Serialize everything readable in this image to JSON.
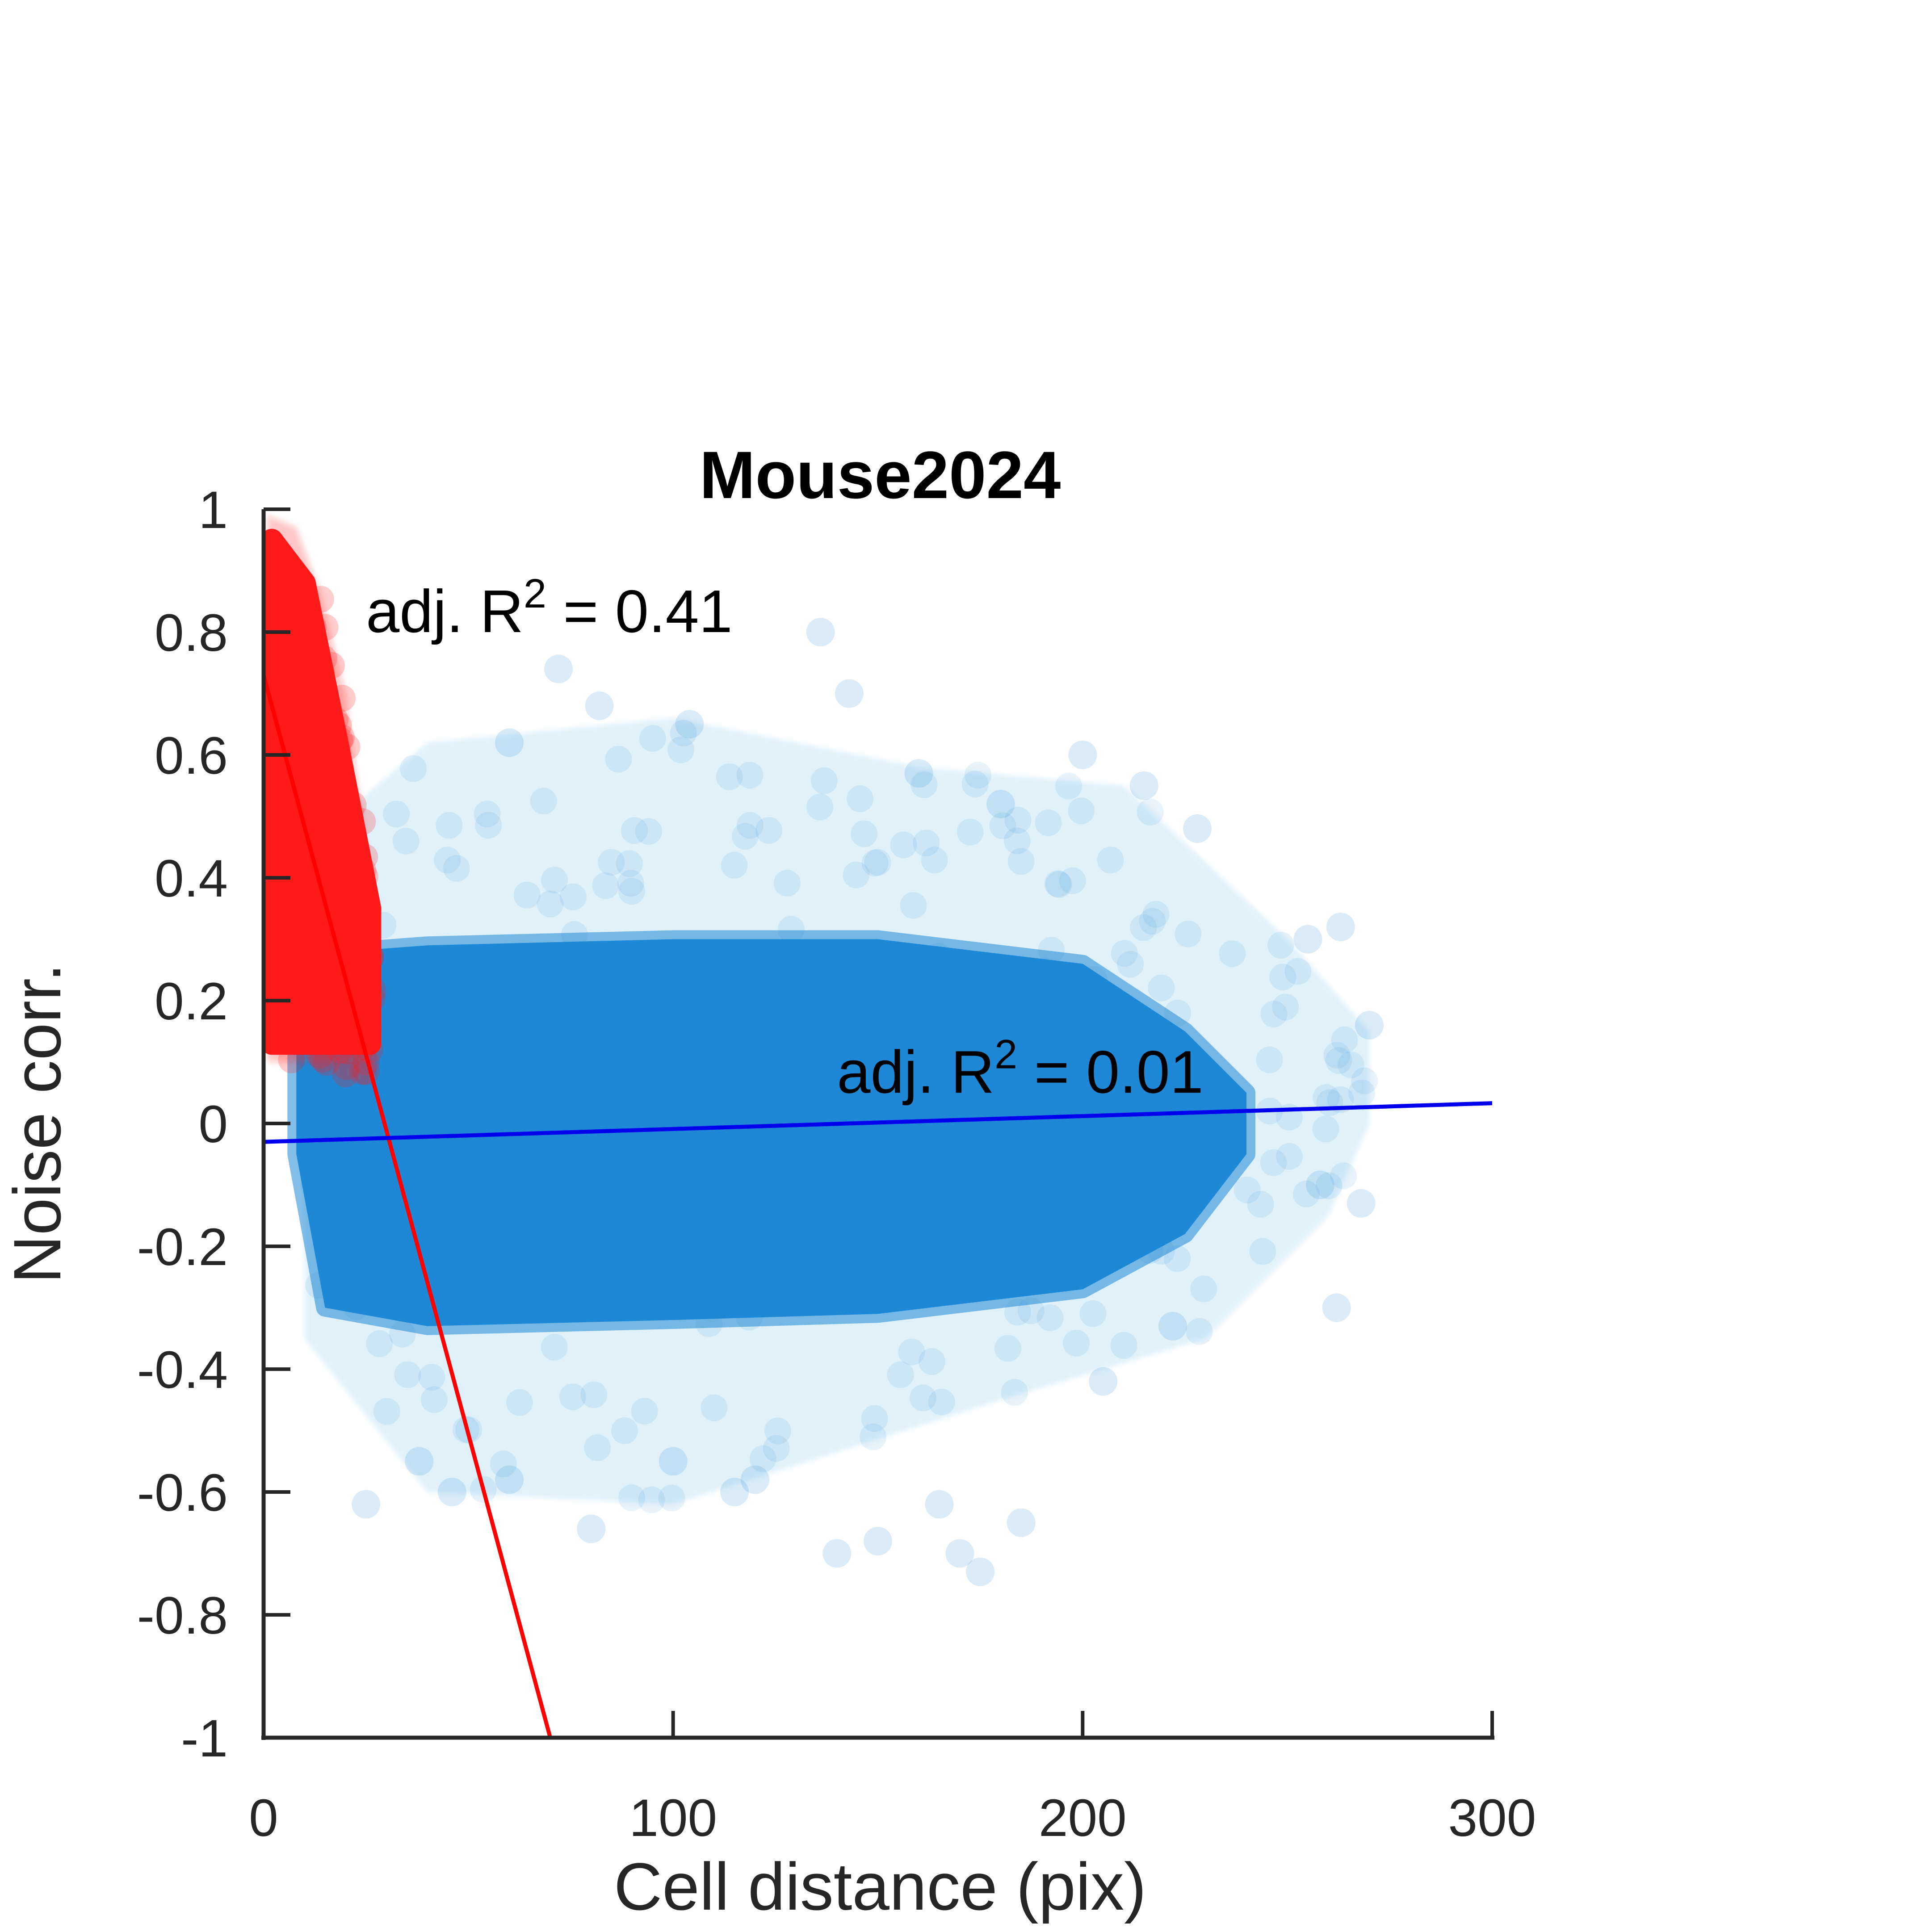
{
  "chart_data": {
    "type": "scatter",
    "title": "Mouse2024",
    "xlabel": "Cell distance (pix)",
    "ylabel": "Noise corr.",
    "xlim": [
      0,
      300
    ],
    "ylim": [
      -1,
      1
    ],
    "xticks": [
      0,
      100,
      200,
      300
    ],
    "xtick_labels": [
      "0",
      "100",
      "200",
      "300"
    ],
    "yticks": [
      1,
      0.8,
      0.6,
      0.4,
      0.2,
      0,
      -0.2,
      -0.4,
      -0.6,
      -0.8,
      -1
    ],
    "ytick_labels": [
      "1",
      "0.8",
      "0.6",
      "0.4",
      "0.2",
      "0",
      "-0.2",
      "-0.4",
      "-0.6",
      "-0.8",
      "-1"
    ],
    "grid": false,
    "legend": "none",
    "colors": {
      "near_points": "#ff1a1a",
      "far_points": "#1e88d6",
      "near_fit": "#ff0000",
      "far_fit": "#0000ee",
      "axis": "#262626"
    },
    "series": [
      {
        "key": "near",
        "kind": "scatter-cloud",
        "color": "#ff1a1a",
        "x_range": [
          1,
          27
        ],
        "y_min": 0.08,
        "upper_envelope": [
          [
            1,
            0.99
          ],
          [
            8,
            0.97
          ],
          [
            14,
            0.86
          ],
          [
            20,
            0.7
          ],
          [
            26,
            0.4
          ],
          [
            27,
            0.15
          ]
        ],
        "core_top": [
          [
            2,
            0.95
          ],
          [
            10,
            0.88
          ],
          [
            18,
            0.62
          ],
          [
            26,
            0.35
          ]
        ]
      },
      {
        "key": "far",
        "kind": "scatter-cloud",
        "color": "#1e88d6",
        "dense_core": {
          "upper": [
            [
              8,
              0.12
            ],
            [
              20,
              0.28
            ],
            [
              40,
              0.29
            ],
            [
              100,
              0.3
            ],
            [
              150,
              0.3
            ],
            [
              200,
              0.26
            ],
            [
              225,
              0.15
            ],
            [
              240,
              0.05
            ]
          ],
          "lower": [
            [
              8,
              -0.05
            ],
            [
              15,
              -0.3
            ],
            [
              40,
              -0.33
            ],
            [
              100,
              -0.32
            ],
            [
              150,
              -0.31
            ],
            [
              200,
              -0.27
            ],
            [
              225,
              -0.18
            ],
            [
              240,
              -0.05
            ]
          ]
        },
        "halo": {
          "upper": [
            [
              10,
              0.45
            ],
            [
              40,
              0.62
            ],
            [
              100,
              0.66
            ],
            [
              160,
              0.58
            ],
            [
              210,
              0.55
            ],
            [
              250,
              0.3
            ],
            [
              270,
              0.15
            ]
          ],
          "lower": [
            [
              10,
              -0.35
            ],
            [
              40,
              -0.6
            ],
            [
              100,
              -0.62
            ],
            [
              180,
              -0.45
            ],
            [
              230,
              -0.35
            ],
            [
              260,
              -0.15
            ],
            [
              270,
              0.0
            ]
          ]
        },
        "outliers": [
          [
            136,
            0.8
          ],
          [
            72,
            0.74
          ],
          [
            143,
            0.7
          ],
          [
            82,
            0.68
          ],
          [
            60,
            0.62
          ],
          [
            104,
            0.65
          ],
          [
            160,
            0.57
          ],
          [
            200,
            0.6
          ],
          [
            215,
            0.55
          ],
          [
            228,
            0.48
          ],
          [
            180,
            0.52
          ],
          [
            255,
            0.3
          ],
          [
            263,
            0.32
          ],
          [
            270,
            0.16
          ],
          [
            268,
            -0.13
          ],
          [
            262,
            -0.3
          ],
          [
            258,
            -0.1
          ],
          [
            60,
            -0.58
          ],
          [
            46,
            -0.6
          ],
          [
            25,
            -0.62
          ],
          [
            80,
            -0.66
          ],
          [
            115,
            -0.6
          ],
          [
            140,
            -0.7
          ],
          [
            150,
            -0.68
          ],
          [
            165,
            -0.62
          ],
          [
            175,
            -0.73
          ],
          [
            170,
            -0.7
          ],
          [
            185,
            -0.65
          ],
          [
            120,
            -0.58
          ],
          [
            100,
            -0.55
          ],
          [
            38,
            -0.55
          ],
          [
            205,
            -0.42
          ],
          [
            222,
            -0.33
          ]
        ]
      }
    ],
    "fits": [
      {
        "key": "near_fit",
        "x": [
          0,
          70
        ],
        "y": [
          0.73,
          -1.0
        ],
        "color": "#ff0000"
      },
      {
        "key": "far_fit",
        "x": [
          0,
          300
        ],
        "y": [
          -0.03,
          0.033
        ],
        "color": "#0000ee"
      }
    ],
    "annotations": [
      {
        "key": "near_r2",
        "prefix": "adj. R",
        "sup": "2",
        "suffix": " = 0.41",
        "at": [
          25,
          0.8
        ]
      },
      {
        "key": "far_r2",
        "prefix": "adj. R",
        "sup": "2",
        "suffix": " = 0.01",
        "at": [
          140,
          0.05
        ]
      }
    ]
  }
}
